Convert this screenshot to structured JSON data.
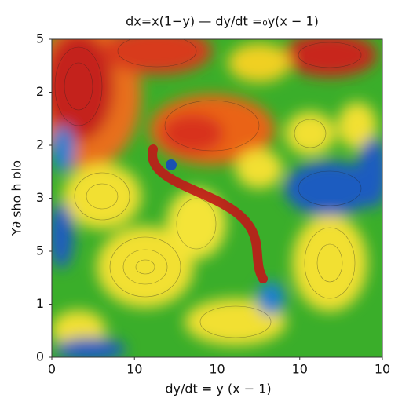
{
  "chart_data": {
    "type": "contour",
    "title": "dx=x(1−y)   —   dy/dt =₀y(x − 1)",
    "x_label": "dy/dt = y (x − 1)",
    "y_label": "Y∂ sho h ɒlo",
    "xlim": [
      0,
      4
    ],
    "xticks": [
      0,
      {
        "value": 1,
        "label": "10"
      },
      {
        "value": 2,
        "label": "10"
      },
      {
        "value": 3,
        "label": "10"
      },
      {
        "value": 4,
        "label": "10"
      }
    ],
    "ylim": [
      0,
      6
    ],
    "yticks": [
      0,
      1,
      {
        "value": 2,
        "label": "5"
      },
      3,
      {
        "value": 4,
        "label": "2"
      },
      {
        "value": 5,
        "label": "2"
      },
      {
        "value": 6,
        "label": "5"
      }
    ]
  }
}
